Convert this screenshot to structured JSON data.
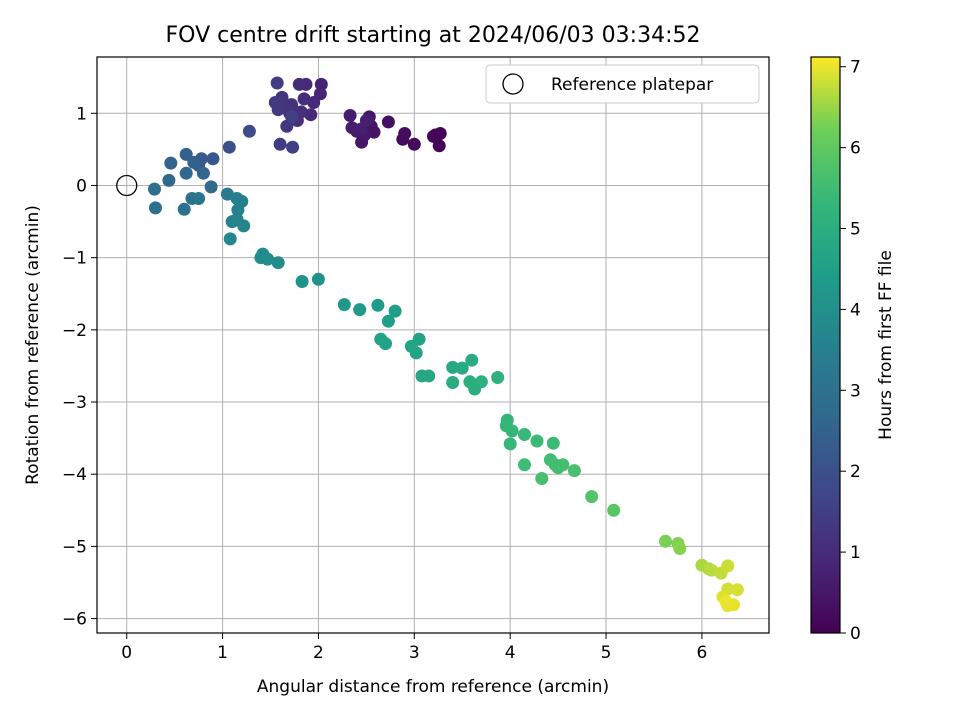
{
  "chart_data": {
    "type": "scatter",
    "title": "FOV centre drift starting at 2024/06/03 03:34:52",
    "xlabel": "Angular distance from reference (arcmin)",
    "ylabel": "Rotation from reference (arcmin)",
    "xlim": [
      -0.31,
      6.7
    ],
    "ylim": [
      -6.2,
      1.78
    ],
    "x_ticks": [
      0,
      1,
      2,
      3,
      4,
      5,
      6
    ],
    "y_ticks": [
      1,
      0,
      -1,
      -2,
      -3,
      -4,
      -5,
      -6
    ],
    "grid": true,
    "legend": {
      "position": "top-right",
      "entries": [
        "Reference platepar"
      ]
    },
    "reference_point": {
      "x": 0,
      "y": 0
    },
    "colorbar": {
      "label": "Hours from first FF file",
      "range": [
        0,
        7.12
      ],
      "ticks": [
        0,
        1,
        2,
        3,
        4,
        5,
        6,
        7
      ],
      "colormap": "viridis"
    },
    "points": [
      [
        3.27,
        0.72,
        0.05
      ],
      [
        3.22,
        0.7,
        0.08
      ],
      [
        3.26,
        0.55,
        0.1
      ],
      [
        3.2,
        0.68,
        0.12
      ],
      [
        3.0,
        0.57,
        0.2
      ],
      [
        2.88,
        0.64,
        0.25
      ],
      [
        2.9,
        0.72,
        0.28
      ],
      [
        2.73,
        0.88,
        0.33
      ],
      [
        2.58,
        0.74,
        0.4
      ],
      [
        2.55,
        0.82,
        0.43
      ],
      [
        2.45,
        0.6,
        0.48
      ],
      [
        2.53,
        0.95,
        0.5
      ],
      [
        2.48,
        0.7,
        0.55
      ],
      [
        2.4,
        0.75,
        0.58
      ],
      [
        2.33,
        0.97,
        0.62
      ],
      [
        2.35,
        0.8,
        0.65
      ],
      [
        2.44,
        0.78,
        0.68
      ],
      [
        2.5,
        0.9,
        0.7
      ],
      [
        2.03,
        1.4,
        0.78
      ],
      [
        2.02,
        1.27,
        0.82
      ],
      [
        1.95,
        1.15,
        0.88
      ],
      [
        1.87,
        1.4,
        0.92
      ],
      [
        1.92,
        0.98,
        0.95
      ],
      [
        1.8,
        1.4,
        1.0
      ],
      [
        1.85,
        1.2,
        1.03
      ],
      [
        1.78,
        0.9,
        1.07
      ],
      [
        1.82,
        1.02,
        1.1
      ],
      [
        1.72,
        1.12,
        1.15
      ],
      [
        1.65,
        1.1,
        1.18
      ],
      [
        1.7,
        1.0,
        1.22
      ],
      [
        1.62,
        1.22,
        1.25
      ],
      [
        1.58,
        1.05,
        1.3
      ],
      [
        1.67,
        0.82,
        1.33
      ],
      [
        1.55,
        1.15,
        1.38
      ],
      [
        1.57,
        1.42,
        1.42
      ],
      [
        1.6,
        0.57,
        1.45
      ],
      [
        1.73,
        0.53,
        1.5
      ],
      [
        1.72,
        0.95,
        1.55
      ],
      [
        1.28,
        0.75,
        1.85
      ],
      [
        1.07,
        0.53,
        2.0
      ],
      [
        0.9,
        0.37,
        2.2
      ],
      [
        0.78,
        0.37,
        2.3
      ],
      [
        0.75,
        0.28,
        2.35
      ],
      [
        0.62,
        0.43,
        2.4
      ],
      [
        0.7,
        0.32,
        2.45
      ],
      [
        0.46,
        0.31,
        2.55
      ],
      [
        0.8,
        0.17,
        2.62
      ],
      [
        0.62,
        0.17,
        2.68
      ],
      [
        0.44,
        0.07,
        2.72
      ],
      [
        0.88,
        -0.02,
        2.78
      ],
      [
        0.29,
        -0.05,
        2.85
      ],
      [
        0.3,
        -0.31,
        2.92
      ],
      [
        0.6,
        -0.33,
        2.97
      ],
      [
        0.68,
        -0.18,
        3.05
      ],
      [
        0.75,
        -0.18,
        3.12
      ],
      [
        1.05,
        -0.12,
        3.3
      ],
      [
        1.15,
        -0.18,
        3.38
      ],
      [
        1.2,
        -0.22,
        3.45
      ],
      [
        1.16,
        -0.34,
        3.5
      ],
      [
        1.1,
        -0.5,
        3.55
      ],
      [
        1.15,
        -0.47,
        3.6
      ],
      [
        1.22,
        -0.56,
        3.65
      ],
      [
        1.08,
        -0.74,
        3.7
      ],
      [
        1.42,
        -0.95,
        3.8
      ],
      [
        1.4,
        -1.0,
        3.85
      ],
      [
        1.47,
        -1.02,
        3.88
      ],
      [
        1.58,
        -1.07,
        3.92
      ],
      [
        2.0,
        -1.3,
        4.05
      ],
      [
        1.83,
        -1.33,
        4.1
      ],
      [
        2.27,
        -1.65,
        4.3
      ],
      [
        2.43,
        -1.72,
        4.35
      ],
      [
        2.62,
        -1.66,
        4.4
      ],
      [
        2.8,
        -1.74,
        4.45
      ],
      [
        2.73,
        -1.88,
        4.5
      ],
      [
        2.65,
        -2.13,
        4.55
      ],
      [
        2.7,
        -2.19,
        4.58
      ],
      [
        3.05,
        -2.13,
        4.62
      ],
      [
        2.97,
        -2.23,
        4.65
      ],
      [
        3.02,
        -2.32,
        4.68
      ],
      [
        3.08,
        -2.64,
        4.75
      ],
      [
        3.15,
        -2.64,
        4.78
      ],
      [
        3.4,
        -2.52,
        4.85
      ],
      [
        3.5,
        -2.53,
        4.88
      ],
      [
        3.6,
        -2.42,
        4.92
      ],
      [
        3.4,
        -2.73,
        4.95
      ],
      [
        3.58,
        -2.72,
        4.98
      ],
      [
        3.63,
        -2.82,
        5.02
      ],
      [
        3.7,
        -2.72,
        5.05
      ],
      [
        3.87,
        -2.66,
        5.1
      ],
      [
        3.97,
        -3.25,
        5.25
      ],
      [
        3.96,
        -3.33,
        5.28
      ],
      [
        4.02,
        -3.4,
        5.32
      ],
      [
        4.0,
        -3.58,
        5.35
      ],
      [
        4.15,
        -3.45,
        5.38
      ],
      [
        4.28,
        -3.54,
        5.42
      ],
      [
        4.45,
        -3.57,
        5.45
      ],
      [
        4.15,
        -3.87,
        5.48
      ],
      [
        4.42,
        -3.8,
        5.52
      ],
      [
        4.47,
        -3.87,
        5.55
      ],
      [
        4.5,
        -3.91,
        5.58
      ],
      [
        4.55,
        -3.87,
        5.6
      ],
      [
        4.67,
        -3.95,
        5.63
      ],
      [
        4.33,
        -4.06,
        5.66
      ],
      [
        4.85,
        -4.31,
        5.8
      ],
      [
        5.08,
        -4.5,
        5.9
      ],
      [
        5.62,
        -4.93,
        6.3
      ],
      [
        5.75,
        -4.96,
        6.35
      ],
      [
        5.77,
        -5.03,
        6.38
      ],
      [
        6.0,
        -5.26,
        6.6
      ],
      [
        6.07,
        -5.31,
        6.65
      ],
      [
        6.1,
        -5.33,
        6.7
      ],
      [
        6.2,
        -5.37,
        6.75
      ],
      [
        6.27,
        -5.27,
        6.8
      ],
      [
        6.27,
        -5.59,
        6.85
      ],
      [
        6.37,
        -5.6,
        6.88
      ],
      [
        6.22,
        -5.7,
        6.92
      ],
      [
        6.27,
        -5.82,
        6.95
      ],
      [
        6.33,
        -5.81,
        6.98
      ],
      [
        6.25,
        -5.76,
        7.0
      ]
    ]
  }
}
